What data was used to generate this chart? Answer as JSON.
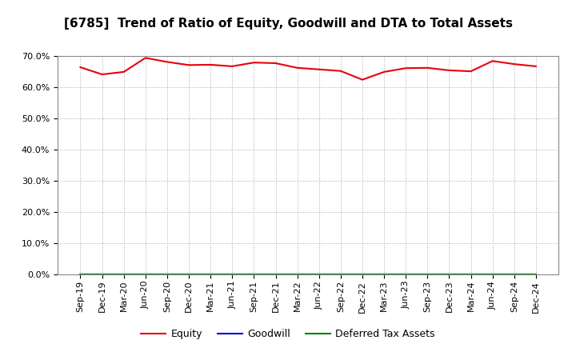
{
  "title": "[6785]  Trend of Ratio of Equity, Goodwill and DTA to Total Assets",
  "x_labels": [
    "Sep-19",
    "Dec-19",
    "Mar-20",
    "Jun-20",
    "Sep-20",
    "Dec-20",
    "Mar-21",
    "Jun-21",
    "Sep-21",
    "Dec-21",
    "Mar-22",
    "Jun-22",
    "Sep-22",
    "Dec-22",
    "Mar-23",
    "Jun-23",
    "Sep-23",
    "Dec-23",
    "Mar-24",
    "Jun-24",
    "Sep-24",
    "Dec-24"
  ],
  "equity": [
    66.5,
    64.2,
    65.0,
    69.5,
    68.2,
    67.2,
    67.3,
    66.8,
    68.0,
    67.8,
    66.3,
    65.8,
    65.3,
    62.5,
    65.0,
    66.2,
    66.3,
    65.5,
    65.2,
    68.5,
    67.5,
    66.8
  ],
  "goodwill": [
    0.0,
    0.0,
    0.0,
    0.0,
    0.0,
    0.0,
    0.0,
    0.0,
    0.0,
    0.0,
    0.0,
    0.0,
    0.0,
    0.0,
    0.0,
    0.0,
    0.0,
    0.0,
    0.0,
    0.0,
    0.0,
    0.0
  ],
  "dta": [
    0.0,
    0.0,
    0.0,
    0.0,
    0.0,
    0.0,
    0.0,
    0.0,
    0.0,
    0.0,
    0.0,
    0.0,
    0.0,
    0.0,
    0.0,
    0.0,
    0.0,
    0.0,
    0.0,
    0.0,
    0.0,
    0.0
  ],
  "equity_color": "#e8000d",
  "goodwill_color": "#0000cd",
  "dta_color": "#008000",
  "ylim": [
    0,
    70
  ],
  "yticks": [
    0,
    10,
    20,
    30,
    40,
    50,
    60,
    70
  ],
  "bg_color": "#ffffff",
  "plot_bg_color": "#ffffff",
  "grid_color": "#aaaaaa",
  "title_fontsize": 11,
  "tick_fontsize": 8,
  "legend_fontsize": 9
}
